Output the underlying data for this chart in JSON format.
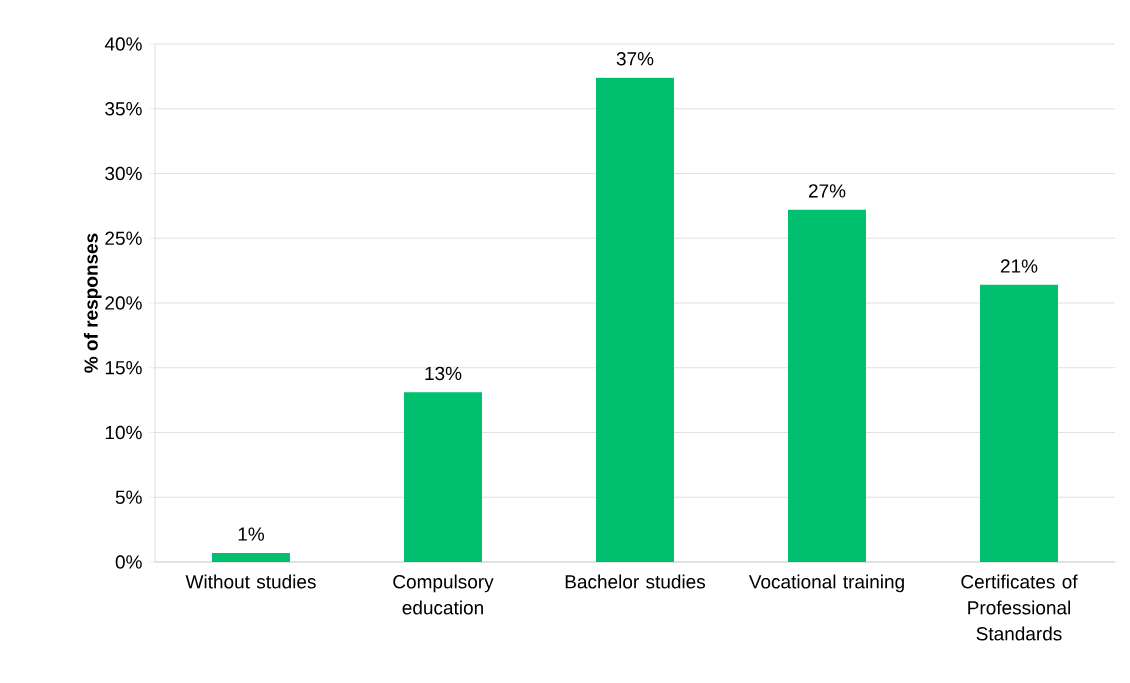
{
  "chart_data": {
    "type": "bar",
    "ylabel": "% of responses",
    "categories": [
      "Without studies",
      "Compulsory education",
      "Bachelor studies",
      "Vocational training",
      "Certificates of Professional Standards"
    ],
    "values": [
      0.7,
      13.1,
      37.4,
      27.2,
      21.4
    ],
    "value_labels": [
      "1%",
      "13%",
      "37%",
      "27%",
      "21%"
    ],
    "color": "#00bf6f",
    "ylim": [
      0,
      40
    ],
    "yticks": [
      {
        "value": 0,
        "label": "0%"
      },
      {
        "value": 5,
        "label": "5%"
      },
      {
        "value": 10,
        "label": "10%"
      },
      {
        "value": 15,
        "label": "15%"
      },
      {
        "value": 20,
        "label": "20%"
      },
      {
        "value": 25,
        "label": "25%"
      },
      {
        "value": 30,
        "label": "30%"
      },
      {
        "value": 35,
        "label": "35%"
      },
      {
        "value": 40,
        "label": "40%"
      }
    ],
    "grid": "y"
  }
}
